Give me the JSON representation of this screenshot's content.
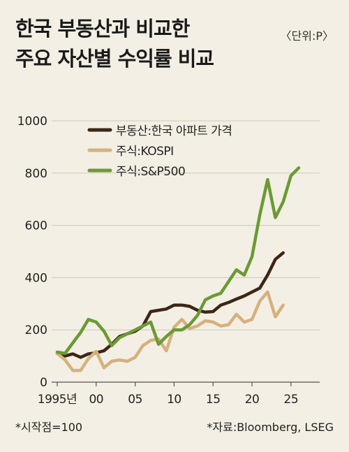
{
  "header": {
    "title_line1": "한국 부동산과 비교한",
    "title_line2": "주요 자산별 수익률 비교",
    "unit": "〈단위:P〉"
  },
  "footer": {
    "note": "*시작점=100",
    "source": "*자료:Bloomberg, LSEG"
  },
  "chart_data": {
    "type": "line",
    "xlim": [
      1995,
      2026
    ],
    "ylim": [
      0,
      1000
    ],
    "y_ticks": [
      0,
      200,
      400,
      600,
      800,
      1000
    ],
    "x_ticks": [
      {
        "value": 1995,
        "label": "1995년"
      },
      {
        "value": 2000,
        "label": "00"
      },
      {
        "value": 2005,
        "label": "05"
      },
      {
        "value": 2010,
        "label": "10"
      },
      {
        "value": 2015,
        "label": "15"
      },
      {
        "value": 2020,
        "label": "20"
      },
      {
        "value": 2025,
        "label": "25"
      }
    ],
    "legend_position": "top-left",
    "series": [
      {
        "name": "부동산:한국 아파트 가격",
        "color": "#3d2616",
        "points": [
          [
            1995,
            110
          ],
          [
            1996,
            100
          ],
          [
            1997,
            108
          ],
          [
            1998,
            95
          ],
          [
            1999,
            108
          ],
          [
            2000,
            112
          ],
          [
            2001,
            120
          ],
          [
            2002,
            145
          ],
          [
            2003,
            175
          ],
          [
            2004,
            185
          ],
          [
            2005,
            195
          ],
          [
            2006,
            215
          ],
          [
            2007,
            270
          ],
          [
            2008,
            275
          ],
          [
            2009,
            280
          ],
          [
            2010,
            295
          ],
          [
            2011,
            295
          ],
          [
            2012,
            290
          ],
          [
            2013,
            275
          ],
          [
            2014,
            268
          ],
          [
            2015,
            270
          ],
          [
            2016,
            295
          ],
          [
            2017,
            305
          ],
          [
            2018,
            318
          ],
          [
            2019,
            330
          ],
          [
            2020,
            345
          ],
          [
            2021,
            360
          ],
          [
            2022,
            410
          ],
          [
            2023,
            470
          ],
          [
            2024,
            495
          ]
        ]
      },
      {
        "name": "주식:KOSPI",
        "color": "#d6b07f",
        "points": [
          [
            1995,
            110
          ],
          [
            1996,
            85
          ],
          [
            1997,
            45
          ],
          [
            1998,
            45
          ],
          [
            1999,
            90
          ],
          [
            2000,
            118
          ],
          [
            2001,
            55
          ],
          [
            2002,
            80
          ],
          [
            2003,
            85
          ],
          [
            2004,
            80
          ],
          [
            2005,
            95
          ],
          [
            2006,
            140
          ],
          [
            2007,
            160
          ],
          [
            2008,
            165
          ],
          [
            2009,
            120
          ],
          [
            2010,
            210
          ],
          [
            2011,
            240
          ],
          [
            2012,
            205
          ],
          [
            2013,
            215
          ],
          [
            2014,
            235
          ],
          [
            2015,
            230
          ],
          [
            2016,
            215
          ],
          [
            2017,
            220
          ],
          [
            2018,
            260
          ],
          [
            2019,
            230
          ],
          [
            2020,
            240
          ],
          [
            2021,
            310
          ],
          [
            2022,
            345
          ],
          [
            2023,
            250
          ],
          [
            2024,
            295
          ]
        ]
      },
      {
        "name": "주식:S&P500",
        "color": "#6b9a34",
        "points": [
          [
            1995,
            115
          ],
          [
            1996,
            110
          ],
          [
            1997,
            150
          ],
          [
            1998,
            190
          ],
          [
            1999,
            240
          ],
          [
            2000,
            230
          ],
          [
            2001,
            195
          ],
          [
            2002,
            140
          ],
          [
            2003,
            170
          ],
          [
            2004,
            185
          ],
          [
            2005,
            200
          ],
          [
            2006,
            215
          ],
          [
            2007,
            230
          ],
          [
            2008,
            145
          ],
          [
            2009,
            175
          ],
          [
            2010,
            200
          ],
          [
            2011,
            200
          ],
          [
            2012,
            220
          ],
          [
            2013,
            255
          ],
          [
            2014,
            315
          ],
          [
            2015,
            330
          ],
          [
            2016,
            340
          ],
          [
            2017,
            385
          ],
          [
            2018,
            430
          ],
          [
            2019,
            410
          ],
          [
            2020,
            480
          ],
          [
            2021,
            640
          ],
          [
            2022,
            775
          ],
          [
            2023,
            630
          ],
          [
            2024,
            690
          ],
          [
            2025,
            790
          ],
          [
            2026,
            820
          ]
        ]
      }
    ]
  }
}
